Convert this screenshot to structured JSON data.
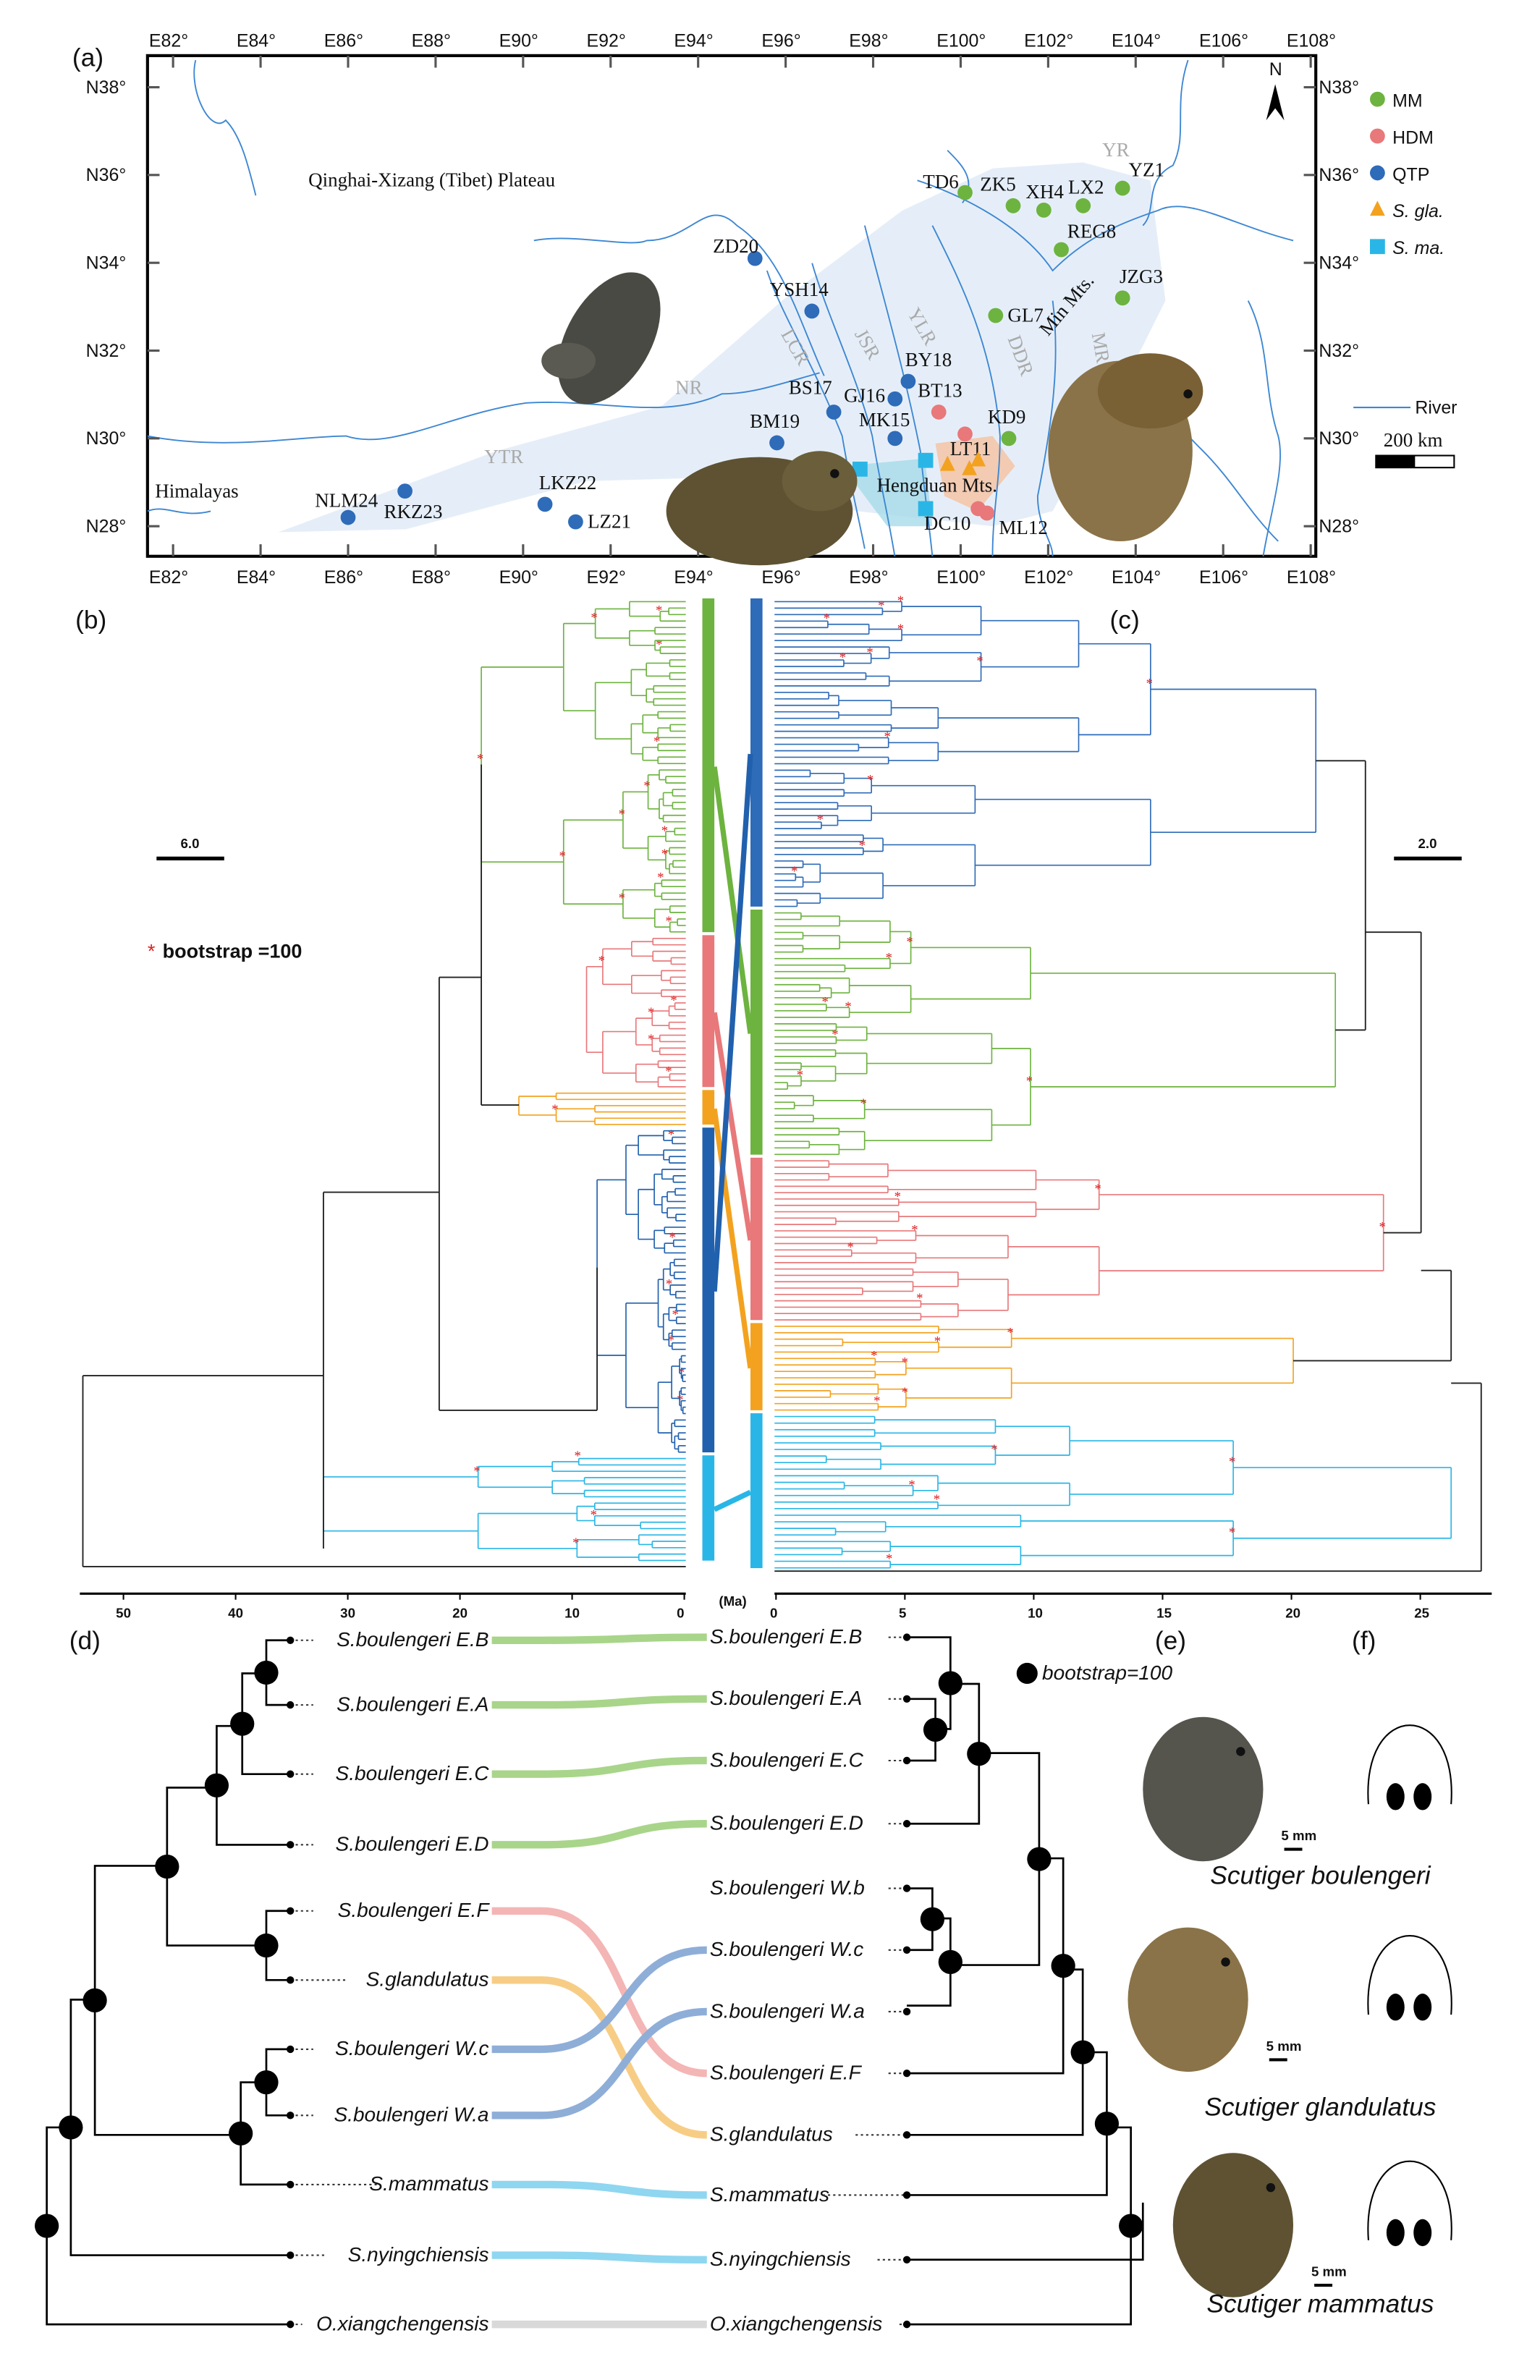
{
  "map": {
    "panel_label": "(a)",
    "lon_ticks": [
      "E82°",
      "E84°",
      "E86°",
      "E88°",
      "E90°",
      "E92°",
      "E94°",
      "E96°",
      "E98°",
      "E100°",
      "E102°",
      "E104°",
      "E106°",
      "E108°"
    ],
    "lat_ticks": [
      "N38°",
      "N36°",
      "N34°",
      "N32°",
      "N30°",
      "N28°"
    ],
    "regions": {
      "plateau": "Qinghai-Xizang (Tibet) Plateau",
      "himalayas": "Himalayas",
      "hengduan": "Hengduan Mts.",
      "min": "Min Mts."
    },
    "rivers": [
      "YR",
      "NR",
      "YTR",
      "LCR",
      "JSR",
      "YLR",
      "DDR",
      "MR"
    ],
    "north": "N",
    "legend": [
      {
        "label": "MM",
        "color": "#6db33f",
        "shape": "circle"
      },
      {
        "label": "HDM",
        "color": "#e8787a",
        "shape": "circle"
      },
      {
        "label": "QTP",
        "color": "#2e6bb8",
        "shape": "circle"
      },
      {
        "label": "S. gla.",
        "color": "#f3a21f",
        "shape": "triangle"
      },
      {
        "label": "S. ma.",
        "color": "#29b6e6",
        "shape": "square"
      }
    ],
    "river_legend": "River",
    "scale_label": "200 km",
    "sites": [
      {
        "id": "TD6",
        "group": "MM",
        "lon": 100.1,
        "lat": 35.6
      },
      {
        "id": "ZK5",
        "group": "MM",
        "lon": 101.2,
        "lat": 35.3
      },
      {
        "id": "XH4",
        "group": "MM",
        "lon": 101.9,
        "lat": 35.2
      },
      {
        "id": "LX2",
        "group": "MM",
        "lon": 102.8,
        "lat": 35.3
      },
      {
        "id": "YZ1",
        "group": "MM",
        "lon": 103.7,
        "lat": 35.7
      },
      {
        "id": "REG8",
        "group": "MM",
        "lon": 102.3,
        "lat": 34.3
      },
      {
        "id": "JZG3",
        "group": "MM",
        "lon": 103.7,
        "lat": 33.2
      },
      {
        "id": "GL7",
        "group": "MM",
        "lon": 100.8,
        "lat": 32.8
      },
      {
        "id": "KD9",
        "group": "MM",
        "lon": 101.1,
        "lat": 30.0
      },
      {
        "id": "ZD20",
        "group": "QTP",
        "lon": 95.3,
        "lat": 34.1
      },
      {
        "id": "YSH14",
        "group": "QTP",
        "lon": 96.6,
        "lat": 32.9
      },
      {
        "id": "BY18",
        "group": "QTP",
        "lon": 98.8,
        "lat": 31.3
      },
      {
        "id": "GJ16",
        "group": "QTP",
        "lon": 98.5,
        "lat": 30.9
      },
      {
        "id": "BS17",
        "group": "QTP",
        "lon": 97.1,
        "lat": 30.6
      },
      {
        "id": "MK15",
        "group": "QTP",
        "lon": 98.5,
        "lat": 30.0
      },
      {
        "id": "BM19",
        "group": "QTP",
        "lon": 95.8,
        "lat": 29.9
      },
      {
        "id": "NLM24",
        "group": "QTP",
        "lon": 86.0,
        "lat": 28.2
      },
      {
        "id": "RKZ23",
        "group": "QTP",
        "lon": 87.3,
        "lat": 28.8
      },
      {
        "id": "LKZ22",
        "group": "QTP",
        "lon": 90.5,
        "lat": 28.5
      },
      {
        "id": "LZ21",
        "group": "QTP",
        "lon": 91.2,
        "lat": 28.1
      },
      {
        "id": "BT13",
        "group": "HDM",
        "lon": 99.5,
        "lat": 30.6
      },
      {
        "id": "LT11",
        "group": "HDM",
        "lon": 100.1,
        "lat": 30.1
      },
      {
        "id": "DC10",
        "group": "HDM",
        "lon": 100.4,
        "lat": 28.4
      },
      {
        "id": "ML12",
        "group": "HDM",
        "lon": 100.6,
        "lat": 28.3
      }
    ],
    "sgla_points": [
      {
        "lon": 99.7,
        "lat": 29.4
      },
      {
        "lon": 100.2,
        "lat": 29.3
      },
      {
        "lon": 100.4,
        "lat": 29.5
      }
    ],
    "sma_points": [
      {
        "lon": 97.7,
        "lat": 29.3
      },
      {
        "lon": 99.2,
        "lat": 29.5
      },
      {
        "lon": 99.2,
        "lat": 28.4
      }
    ]
  },
  "trees": {
    "label_b": "(b)",
    "label_c": "(c)",
    "scale_b": "6.0",
    "scale_c": "2.0",
    "bootstrap_mark": "*",
    "bootstrap_label": "bootstrap =100",
    "axis_b": [
      "50",
      "40",
      "30",
      "20",
      "10",
      "0"
    ],
    "axis_c": [
      "0",
      "5",
      "10",
      "15",
      "20",
      "25"
    ],
    "unit": "(Ma)",
    "clades_b": [
      {
        "group": "MM",
        "color": "#6db33f"
      },
      {
        "group": "HDM",
        "color": "#e8787a"
      },
      {
        "group": "S. gla.",
        "color": "#f3a21f"
      },
      {
        "group": "QTP",
        "color": "#2160ad"
      },
      {
        "group": "S. ma.",
        "color": "#29b6e6"
      }
    ],
    "clades_c": [
      {
        "group": "QTP",
        "color": "#2e6bb8"
      },
      {
        "group": "MM",
        "color": "#6db33f"
      },
      {
        "group": "HDM",
        "color": "#e8787a"
      },
      {
        "group": "S. gla.",
        "color": "#f3a21f"
      },
      {
        "group": "S. ma.",
        "color": "#29b6e6"
      }
    ]
  },
  "cophylo": {
    "label_d": "(d)",
    "label_e": "(e)",
    "label_f": "(f)",
    "bootstrap_label": "bootstrap=100",
    "left_taxa": [
      "S.boulengeri E.B",
      "S.boulengeri E.A",
      "S.boulengeri E.C",
      "S.boulengeri E.D",
      "S.boulengeri E.F",
      "S.glandulatus",
      "S.boulengeri W.c",
      "S.boulengeri W.a",
      "S.mammatus",
      "S.nyingchiensis",
      "O.xiangchengensis"
    ],
    "right_taxa": [
      "S.boulengeri E.B",
      "S.boulengeri E.A",
      "S.boulengeri E.C",
      "S.boulengeri E.D",
      "S.boulengeri W.b",
      "S.boulengeri W.c",
      "S.boulengeri W.a",
      "S.boulengeri E.F",
      "S.glandulatus",
      "S.mammatus",
      "S.nyingchiensis",
      "O.xiangchengensis"
    ],
    "links": [
      {
        "from": 0,
        "to": 0,
        "color": "#a8d58a"
      },
      {
        "from": 1,
        "to": 1,
        "color": "#a8d58a"
      },
      {
        "from": 2,
        "to": 2,
        "color": "#a8d58a"
      },
      {
        "from": 3,
        "to": 3,
        "color": "#a8d58a"
      },
      {
        "from": 4,
        "to": 7,
        "color": "#f4b5b5"
      },
      {
        "from": 5,
        "to": 8,
        "color": "#f7cd85"
      },
      {
        "from": 6,
        "to": 5,
        "color": "#8eaed8"
      },
      {
        "from": 7,
        "to": 6,
        "color": "#8eaed8"
      },
      {
        "from": 8,
        "to": 9,
        "color": "#8fd6f0"
      },
      {
        "from": 9,
        "to": 10,
        "color": "#8fd6f0"
      },
      {
        "from": 10,
        "to": 11,
        "color": "#d9d9d9"
      }
    ],
    "species": [
      {
        "name": "Scutiger boulengeri",
        "scale": "5 mm"
      },
      {
        "name": "Scutiger glandulatus",
        "scale": "5 mm"
      },
      {
        "name": "Scutiger mammatus",
        "scale": "5 mm"
      }
    ]
  }
}
